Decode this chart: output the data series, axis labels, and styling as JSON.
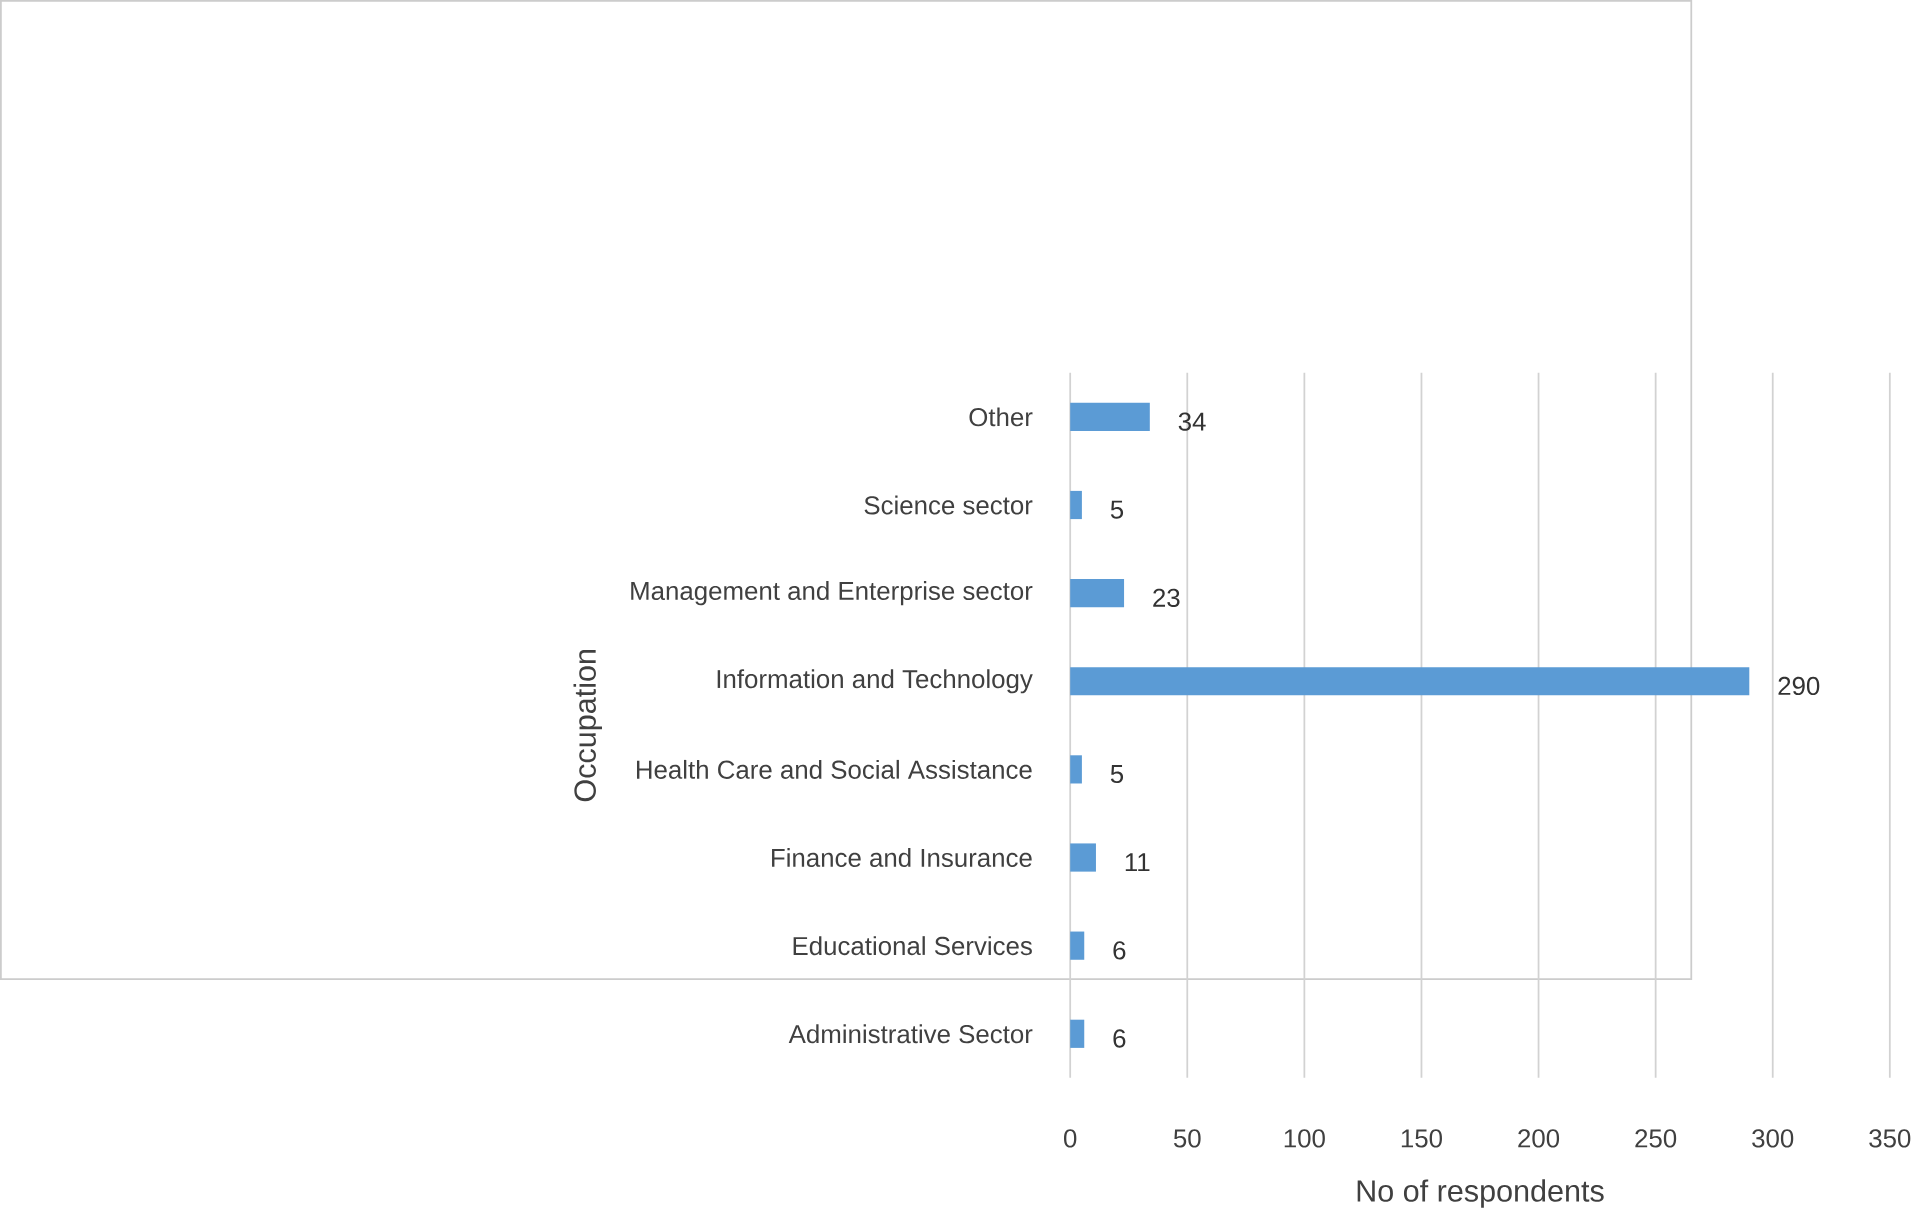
{
  "chart_data": {
    "type": "bar",
    "orientation": "horizontal",
    "xlabel": "No of respondents",
    "ylabel": "Occupation",
    "categories": [
      "Other",
      "Science sector",
      "Management and Enterprise sector",
      "Information and Technology",
      "Health Care and Social Assistance",
      "Finance and Insurance",
      "Educational Services",
      "Administrative Sector"
    ],
    "values": [
      34,
      5,
      23,
      290,
      5,
      11,
      6,
      6
    ],
    "color": "#5b9bd5",
    "xlim": [
      0,
      350
    ],
    "xticks": [
      0,
      50,
      100,
      150,
      200,
      250,
      300,
      350
    ],
    "grid": "x",
    "data_labels": true
  }
}
